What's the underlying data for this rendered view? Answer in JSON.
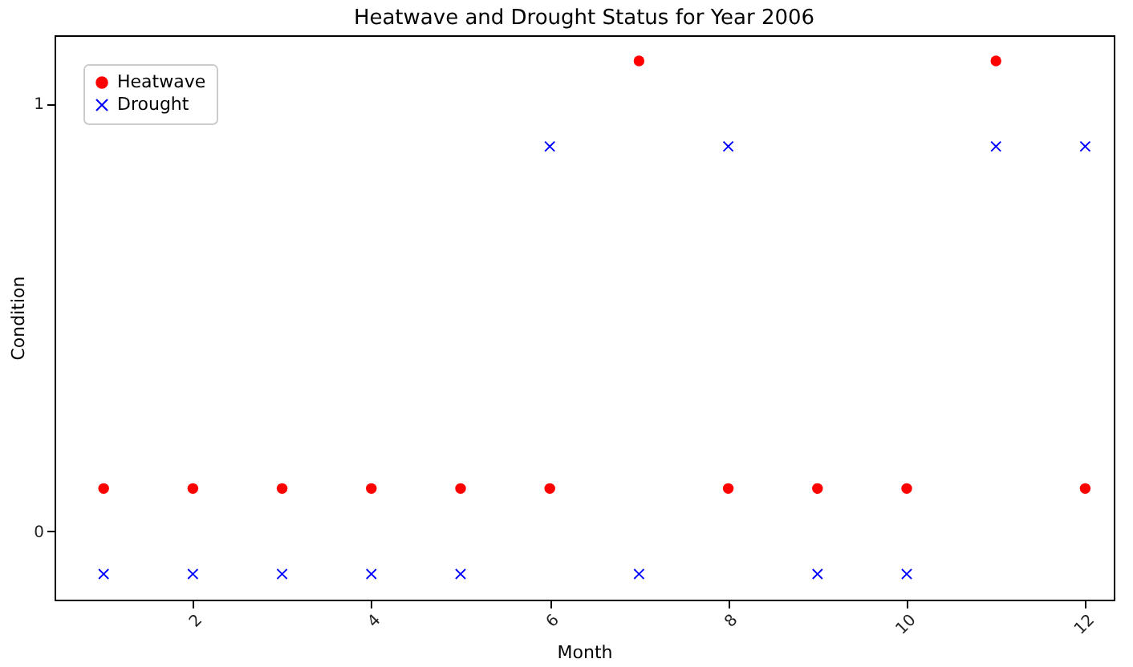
{
  "chart_data": {
    "type": "scatter",
    "title": "Heatwave and Drought Status for Year 2006",
    "xlabel": "Month",
    "ylabel": "Condition",
    "x": [
      1,
      2,
      3,
      4,
      5,
      6,
      7,
      8,
      9,
      10,
      11,
      12
    ],
    "series": [
      {
        "name": "Heatwave",
        "color": "#ff0000",
        "marker": "circle",
        "values": [
          0.1,
          0.1,
          0.1,
          0.1,
          0.1,
          0.1,
          1.1,
          0.1,
          0.1,
          0.1,
          1.1,
          0.1
        ]
      },
      {
        "name": "Drought",
        "color": "#0000ff",
        "marker": "cross",
        "values": [
          -0.1,
          -0.1,
          -0.1,
          -0.1,
          -0.1,
          0.9,
          -0.1,
          0.9,
          -0.1,
          -0.1,
          0.9,
          0.9
        ]
      }
    ],
    "xlim": [
      0.45,
      12.32
    ],
    "xticks": [
      2,
      4,
      6,
      8,
      10,
      12
    ],
    "ylim": [
      -0.16,
      1.16
    ],
    "yticks": [
      0,
      1
    ],
    "legend": "top left",
    "grid": false
  }
}
